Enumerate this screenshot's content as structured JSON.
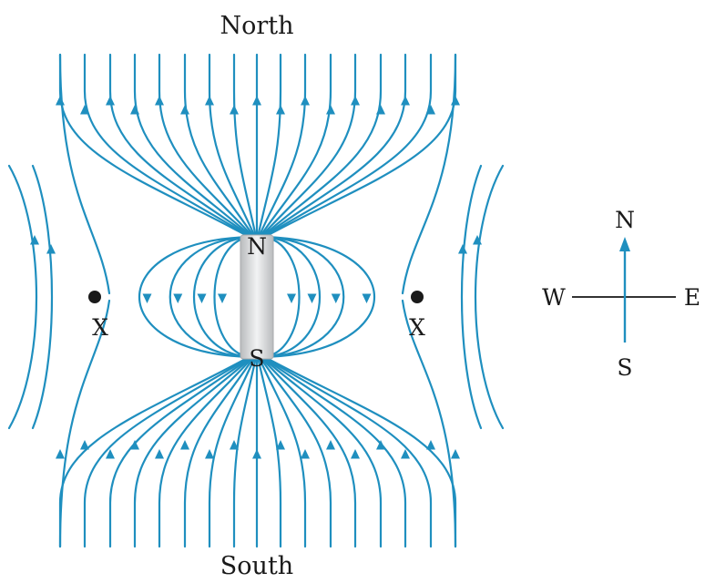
{
  "colors": {
    "field_line": "#1f8fbf",
    "magnet_fill": "#cfd1d3",
    "text": "#1a1a1a",
    "compass_axis": "#333333"
  },
  "labels": {
    "top": "North",
    "bottom": "South",
    "magnet_north": "N",
    "magnet_south": "S",
    "neutral_left": "X",
    "neutral_right": "X"
  },
  "compass": {
    "north": "N",
    "south": "S",
    "east": "E",
    "west": "W"
  },
  "icons": [
    "bar-magnet",
    "compass-rose-icon",
    "neutral-point-dot"
  ]
}
